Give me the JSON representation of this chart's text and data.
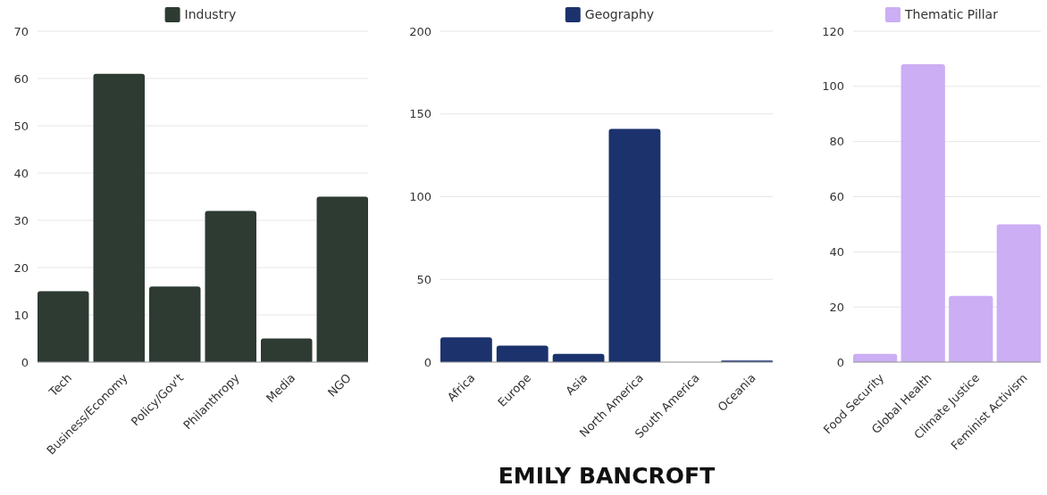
{
  "chart_data": [
    {
      "type": "bar",
      "categories": [
        "Tech",
        "Business/Economy",
        "Policy/Gov't",
        "Philanthropy",
        "Media",
        "NGO"
      ],
      "series": [
        {
          "name": "Industry",
          "color": "#2d3b32",
          "values": [
            15,
            61,
            16,
            32,
            5,
            35
          ]
        }
      ],
      "ylim": [
        0,
        70
      ],
      "yticks": [
        0,
        10,
        20,
        30,
        40,
        50,
        60,
        70
      ],
      "grid": "y",
      "legend": "top"
    },
    {
      "type": "bar",
      "categories": [
        "Africa",
        "Europe",
        "Asia",
        "North America",
        "South America",
        "Oceania"
      ],
      "series": [
        {
          "name": "Geography",
          "color": "#1b326d",
          "values": [
            15,
            10,
            5,
            141,
            0,
            1
          ]
        }
      ],
      "ylim": [
        0,
        200
      ],
      "yticks": [
        0,
        50,
        100,
        150,
        200
      ],
      "grid": "y",
      "legend": "top",
      "annotations": [
        "EMILY BANCROFT"
      ]
    },
    {
      "type": "bar",
      "categories": [
        "Food Security",
        "Global Health",
        "Climate Justice",
        "Feminist Activism"
      ],
      "series": [
        {
          "name": "Thematic Pillar",
          "color": "#cbaef4",
          "values": [
            3,
            108,
            24,
            50
          ]
        }
      ],
      "ylim": [
        0,
        120
      ],
      "yticks": [
        0,
        20,
        40,
        60,
        80,
        100,
        120
      ],
      "grid": "y",
      "legend": "top"
    }
  ]
}
